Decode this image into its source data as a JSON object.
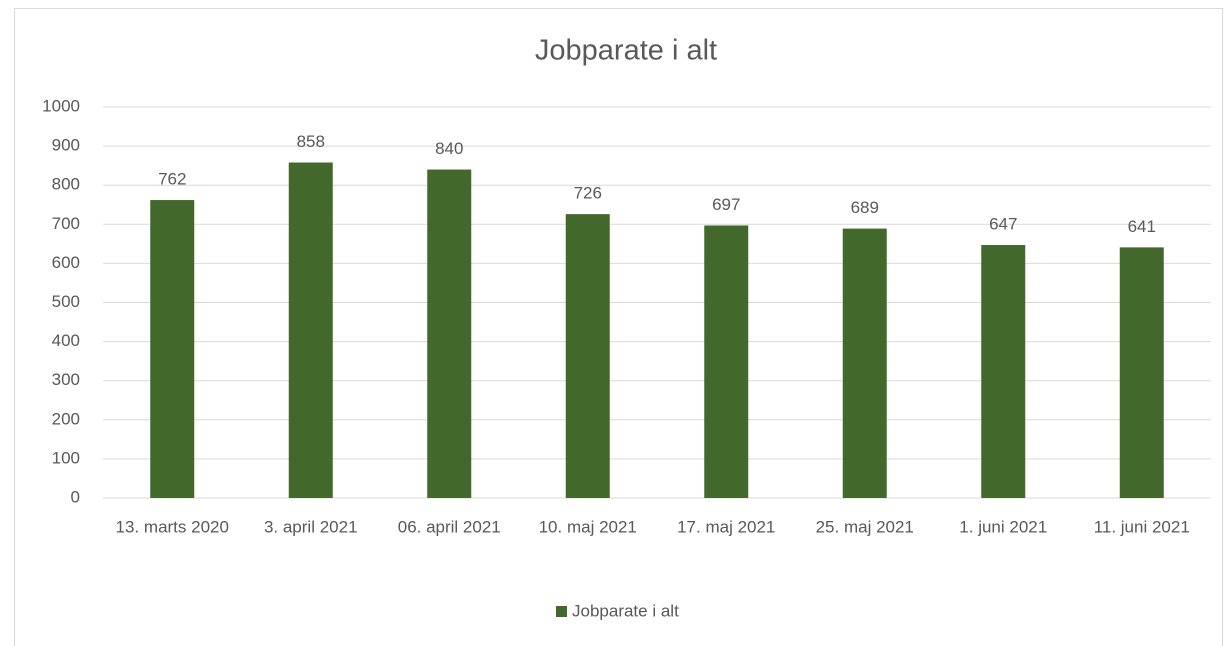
{
  "chart_data": {
    "type": "bar",
    "title": "Jobparate i alt",
    "categories": [
      "13. marts 2020",
      "3. april 2021",
      "06. april 2021",
      "10. maj 2021",
      "17. maj 2021",
      "25. maj 2021",
      "1. juni 2021",
      "11. juni 2021"
    ],
    "series": [
      {
        "name": "Jobparate i alt",
        "color": "#43682b",
        "values": [
          762,
          858,
          840,
          726,
          697,
          689,
          647,
          641
        ]
      }
    ],
    "ylim": [
      0,
      1000
    ],
    "yticks": [
      0,
      100,
      200,
      300,
      400,
      500,
      600,
      700,
      800,
      900,
      1000
    ],
    "grid": true,
    "legend": "bottom"
  }
}
